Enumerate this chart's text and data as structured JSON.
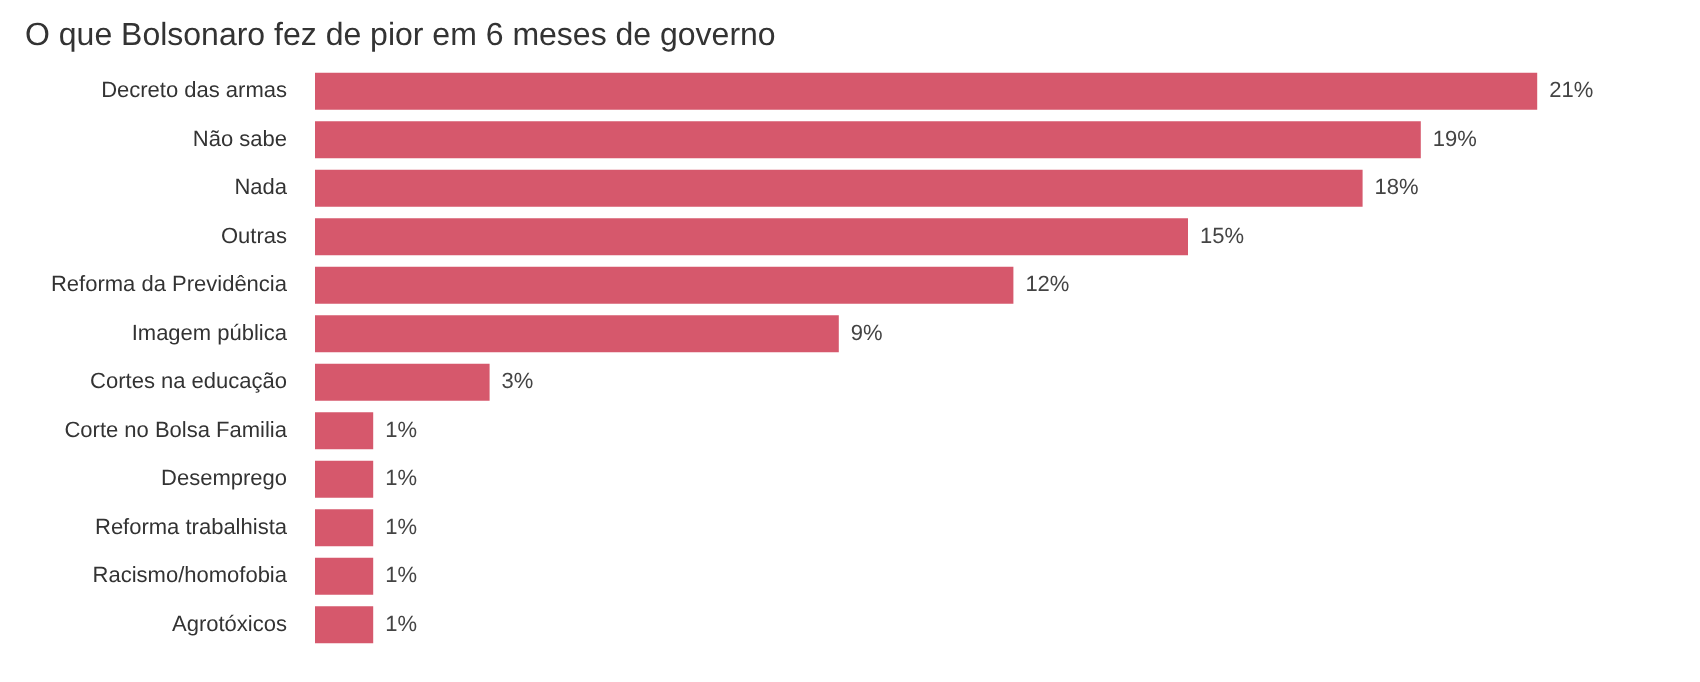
{
  "chart_data": {
    "type": "bar",
    "orientation": "horizontal",
    "title": "O que Bolsonaro fez de pior em 6 meses de governo",
    "categories": [
      "Decreto das armas",
      "Não sabe",
      "Nada",
      "Outras",
      "Reforma da Previdência",
      "Imagem pública",
      "Cortes na educação",
      "Corte no Bolsa Familia",
      "Desemprego",
      "Reforma trabalhista",
      "Racismo/homofobia",
      "Agrotóxicos"
    ],
    "values": [
      21,
      19,
      18,
      15,
      12,
      9,
      3,
      1,
      1,
      1,
      1,
      1
    ],
    "value_labels": [
      "21%",
      "19%",
      "18%",
      "15%",
      "12%",
      "9%",
      "3%",
      "1%",
      "1%",
      "1%",
      "1%",
      "1%"
    ],
    "color": "#d6586c"
  }
}
